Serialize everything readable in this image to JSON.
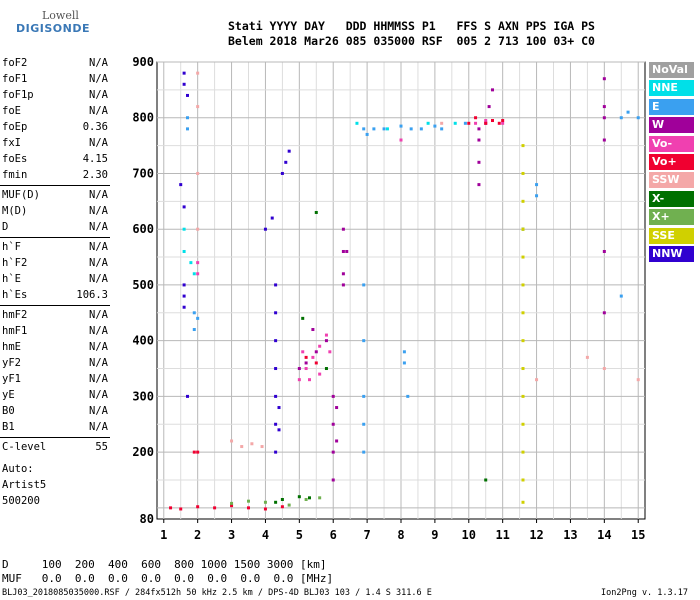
{
  "logo": {
    "line1": "Lowell",
    "line2": "DIGISONDE"
  },
  "header": {
    "line1": "Stati YYYY DAY   DDD HHMMSS P1   FFS S AXN PPS IGA PS",
    "line2": "Belem 2018 Mar26 085 035000 RSF  005 2 713 100 03+ C0"
  },
  "params": [
    {
      "label": "foF2",
      "value": "N/A"
    },
    {
      "label": "foF1",
      "value": "N/A"
    },
    {
      "label": "foF1p",
      "value": "N/A"
    },
    {
      "label": "foE",
      "value": "N/A"
    },
    {
      "label": "foEp",
      "value": "0.36"
    },
    {
      "label": "fxI",
      "value": "N/A"
    },
    {
      "label": "foEs",
      "value": "4.15"
    },
    {
      "label": "fmin",
      "value": "2.30"
    },
    {
      "label": "MUF(D)",
      "value": "N/A"
    },
    {
      "label": "M(D)",
      "value": "N/A"
    },
    {
      "label": "D",
      "value": "N/A"
    },
    {
      "label": "h`F",
      "value": "N/A"
    },
    {
      "label": "h`F2",
      "value": "N/A"
    },
    {
      "label": "h`E",
      "value": "N/A"
    },
    {
      "label": "h`Es",
      "value": "106.3"
    },
    {
      "label": "hmF2",
      "value": "N/A"
    },
    {
      "label": "hmF1",
      "value": "N/A"
    },
    {
      "label": "hmE",
      "value": "N/A"
    },
    {
      "label": "yF2",
      "value": "N/A"
    },
    {
      "label": "yF1",
      "value": "N/A"
    },
    {
      "label": "yE",
      "value": "N/A"
    },
    {
      "label": "B0",
      "value": "N/A"
    },
    {
      "label": "B1",
      "value": "N/A"
    },
    {
      "label": "C-level",
      "value": "55"
    }
  ],
  "auto": {
    "line1": "Auto:",
    "line2": "Artist5",
    "line3": "500200"
  },
  "legend": [
    {
      "label": "NoVal",
      "color": "#a0a0a0"
    },
    {
      "label": "NNE",
      "color": "#00e0e8"
    },
    {
      "label": "E",
      "color": "#3aa0f0"
    },
    {
      "label": "W",
      "color": "#a0009a"
    },
    {
      "label": "Vo-",
      "color": "#f040b0"
    },
    {
      "label": "Vo+",
      "color": "#f00030"
    },
    {
      "label": "SSW",
      "color": "#f4a8a8"
    },
    {
      "label": "X-",
      "color": "#007000"
    },
    {
      "label": "X+",
      "color": "#70b050"
    },
    {
      "label": "SSE",
      "color": "#d0d000"
    },
    {
      "label": "NNW",
      "color": "#3000d0"
    }
  ],
  "bottom_table": {
    "row1": "D     100  200  400  600  800 1000 1500 3000 [km]",
    "row2": "MUF   0.0  0.0  0.0  0.0  0.0  0.0  0.0  0.0 [MHz]"
  },
  "footer": {
    "left": "BLJ03_2018085035000.RSF / 284fx512h 50 kHz 2.5 km / DPS-4D BLJ03 103 / 1.4 S 311.6 E",
    "right": "Ion2Png v. 1.3.17"
  },
  "chart_data": {
    "type": "scatter",
    "xlabel": "",
    "ylabel": "",
    "xlim": [
      0.8,
      15.2
    ],
    "ylim": [
      80,
      900
    ],
    "x_ticks": [
      "1",
      "2",
      "3",
      "4",
      "5",
      "6",
      "7",
      "8",
      "9",
      "10",
      "11",
      "12",
      "13",
      "14",
      "15"
    ],
    "y_ticks": [
      "80",
      "200",
      "300",
      "400",
      "500",
      "600",
      "700",
      "800",
      "900"
    ],
    "grid": true,
    "series": [
      {
        "name": "E",
        "color": "#3aa0f0",
        "points": [
          [
            1.7,
            800
          ],
          [
            1.7,
            780
          ],
          [
            1.9,
            450
          ],
          [
            1.9,
            420
          ],
          [
            2.0,
            440
          ],
          [
            6.9,
            780
          ],
          [
            7.0,
            770
          ],
          [
            7.2,
            780
          ],
          [
            7.5,
            780
          ],
          [
            8.0,
            785
          ],
          [
            8.3,
            780
          ],
          [
            8.6,
            780
          ],
          [
            9.0,
            785
          ],
          [
            9.2,
            780
          ],
          [
            6.9,
            500
          ],
          [
            6.9,
            400
          ],
          [
            6.9,
            300
          ],
          [
            6.9,
            250
          ],
          [
            6.9,
            200
          ],
          [
            8.1,
            380
          ],
          [
            8.1,
            360
          ],
          [
            8.2,
            300
          ],
          [
            9.9,
            790
          ],
          [
            14.5,
            800
          ],
          [
            14.7,
            810
          ],
          [
            15.0,
            800
          ],
          [
            14.5,
            480
          ],
          [
            12.0,
            680
          ],
          [
            12.0,
            660
          ]
        ]
      },
      {
        "name": "W",
        "color": "#a0009a",
        "points": [
          [
            6.0,
            300
          ],
          [
            6.0,
            250
          ],
          [
            6.0,
            200
          ],
          [
            6.0,
            150
          ],
          [
            6.1,
            280
          ],
          [
            6.1,
            220
          ],
          [
            6.3,
            600
          ],
          [
            6.3,
            560
          ],
          [
            6.3,
            520
          ],
          [
            6.3,
            500
          ],
          [
            6.4,
            560
          ],
          [
            10.3,
            780
          ],
          [
            10.3,
            760
          ],
          [
            10.3,
            720
          ],
          [
            10.3,
            680
          ],
          [
            10.5,
            790
          ],
          [
            10.6,
            820
          ],
          [
            10.7,
            850
          ],
          [
            14.0,
            870
          ],
          [
            14.0,
            820
          ],
          [
            14.0,
            800
          ],
          [
            14.0,
            760
          ],
          [
            14.0,
            560
          ],
          [
            14.0,
            450
          ],
          [
            5.0,
            350
          ],
          [
            5.2,
            360
          ],
          [
            5.5,
            380
          ],
          [
            5.8,
            400
          ],
          [
            5.4,
            420
          ]
        ]
      },
      {
        "name": "Vo-",
        "color": "#f040b0",
        "points": [
          [
            5.0,
            330
          ],
          [
            5.2,
            350
          ],
          [
            5.4,
            370
          ],
          [
            5.6,
            390
          ],
          [
            5.8,
            410
          ],
          [
            5.3,
            330
          ],
          [
            5.6,
            340
          ],
          [
            5.1,
            380
          ],
          [
            5.9,
            380
          ],
          [
            2.0,
            540
          ],
          [
            2.0,
            520
          ],
          [
            8.0,
            760
          ],
          [
            10.2,
            790
          ],
          [
            10.5,
            795
          ],
          [
            11.0,
            790
          ]
        ]
      },
      {
        "name": "Vo+",
        "color": "#f00030",
        "points": [
          [
            1.2,
            100
          ],
          [
            1.5,
            98
          ],
          [
            2.0,
            102
          ],
          [
            2.5,
            100
          ],
          [
            3.0,
            104
          ],
          [
            3.5,
            100
          ],
          [
            4.0,
            98
          ],
          [
            4.5,
            102
          ],
          [
            2.0,
            200
          ],
          [
            1.9,
            200
          ],
          [
            10.0,
            790
          ],
          [
            10.2,
            800
          ],
          [
            10.5,
            790
          ],
          [
            10.7,
            795
          ],
          [
            10.9,
            790
          ],
          [
            11.0,
            795
          ],
          [
            5.2,
            370
          ],
          [
            5.5,
            360
          ]
        ]
      },
      {
        "name": "SSW",
        "color": "#f4a8a8",
        "points": [
          [
            3.0,
            220
          ],
          [
            3.3,
            210
          ],
          [
            3.6,
            215
          ],
          [
            3.9,
            210
          ],
          [
            2.0,
            880
          ],
          [
            2.0,
            820
          ],
          [
            2.0,
            700
          ],
          [
            2.0,
            600
          ],
          [
            9.2,
            790
          ],
          [
            12.0,
            330
          ],
          [
            13.5,
            370
          ],
          [
            14.0,
            350
          ],
          [
            15.0,
            330
          ]
        ]
      },
      {
        "name": "X-",
        "color": "#007000",
        "points": [
          [
            4.3,
            110
          ],
          [
            4.5,
            115
          ],
          [
            5.0,
            120
          ],
          [
            5.3,
            118
          ],
          [
            5.5,
            630
          ],
          [
            5.1,
            440
          ],
          [
            10.5,
            150
          ],
          [
            11.6,
            600
          ],
          [
            5.8,
            350
          ]
        ]
      },
      {
        "name": "X+",
        "color": "#70b050",
        "points": [
          [
            3.0,
            108
          ],
          [
            3.5,
            112
          ],
          [
            4.0,
            110
          ],
          [
            4.7,
            105
          ],
          [
            5.2,
            115
          ],
          [
            5.6,
            118
          ]
        ]
      },
      {
        "name": "SSE",
        "color": "#d0d000",
        "points": [
          [
            11.6,
            750
          ],
          [
            11.6,
            700
          ],
          [
            11.6,
            650
          ],
          [
            11.6,
            600
          ],
          [
            11.6,
            550
          ],
          [
            11.6,
            500
          ],
          [
            11.6,
            450
          ],
          [
            11.6,
            400
          ],
          [
            11.6,
            350
          ],
          [
            11.6,
            300
          ],
          [
            11.6,
            250
          ],
          [
            11.6,
            200
          ],
          [
            11.6,
            150
          ],
          [
            11.6,
            110
          ]
        ]
      },
      {
        "name": "NNW",
        "color": "#3000d0",
        "points": [
          [
            1.6,
            880
          ],
          [
            1.6,
            860
          ],
          [
            1.7,
            840
          ],
          [
            1.6,
            500
          ],
          [
            1.6,
            480
          ],
          [
            1.6,
            460
          ],
          [
            1.7,
            300
          ],
          [
            4.0,
            600
          ],
          [
            4.2,
            620
          ],
          [
            4.5,
            700
          ],
          [
            4.6,
            720
          ],
          [
            4.7,
            740
          ],
          [
            4.3,
            500
          ],
          [
            4.3,
            450
          ],
          [
            4.3,
            400
          ],
          [
            4.3,
            350
          ],
          [
            4.3,
            300
          ],
          [
            4.3,
            250
          ],
          [
            4.3,
            200
          ],
          [
            4.4,
            280
          ],
          [
            4.4,
            240
          ],
          [
            1.5,
            680
          ],
          [
            1.6,
            640
          ]
        ]
      },
      {
        "name": "NNE",
        "color": "#00e0e8",
        "points": [
          [
            1.6,
            600
          ],
          [
            1.6,
            560
          ],
          [
            1.8,
            540
          ],
          [
            1.9,
            520
          ],
          [
            6.7,
            790
          ],
          [
            7.6,
            780
          ],
          [
            8.8,
            790
          ],
          [
            9.6,
            790
          ]
        ]
      }
    ]
  }
}
